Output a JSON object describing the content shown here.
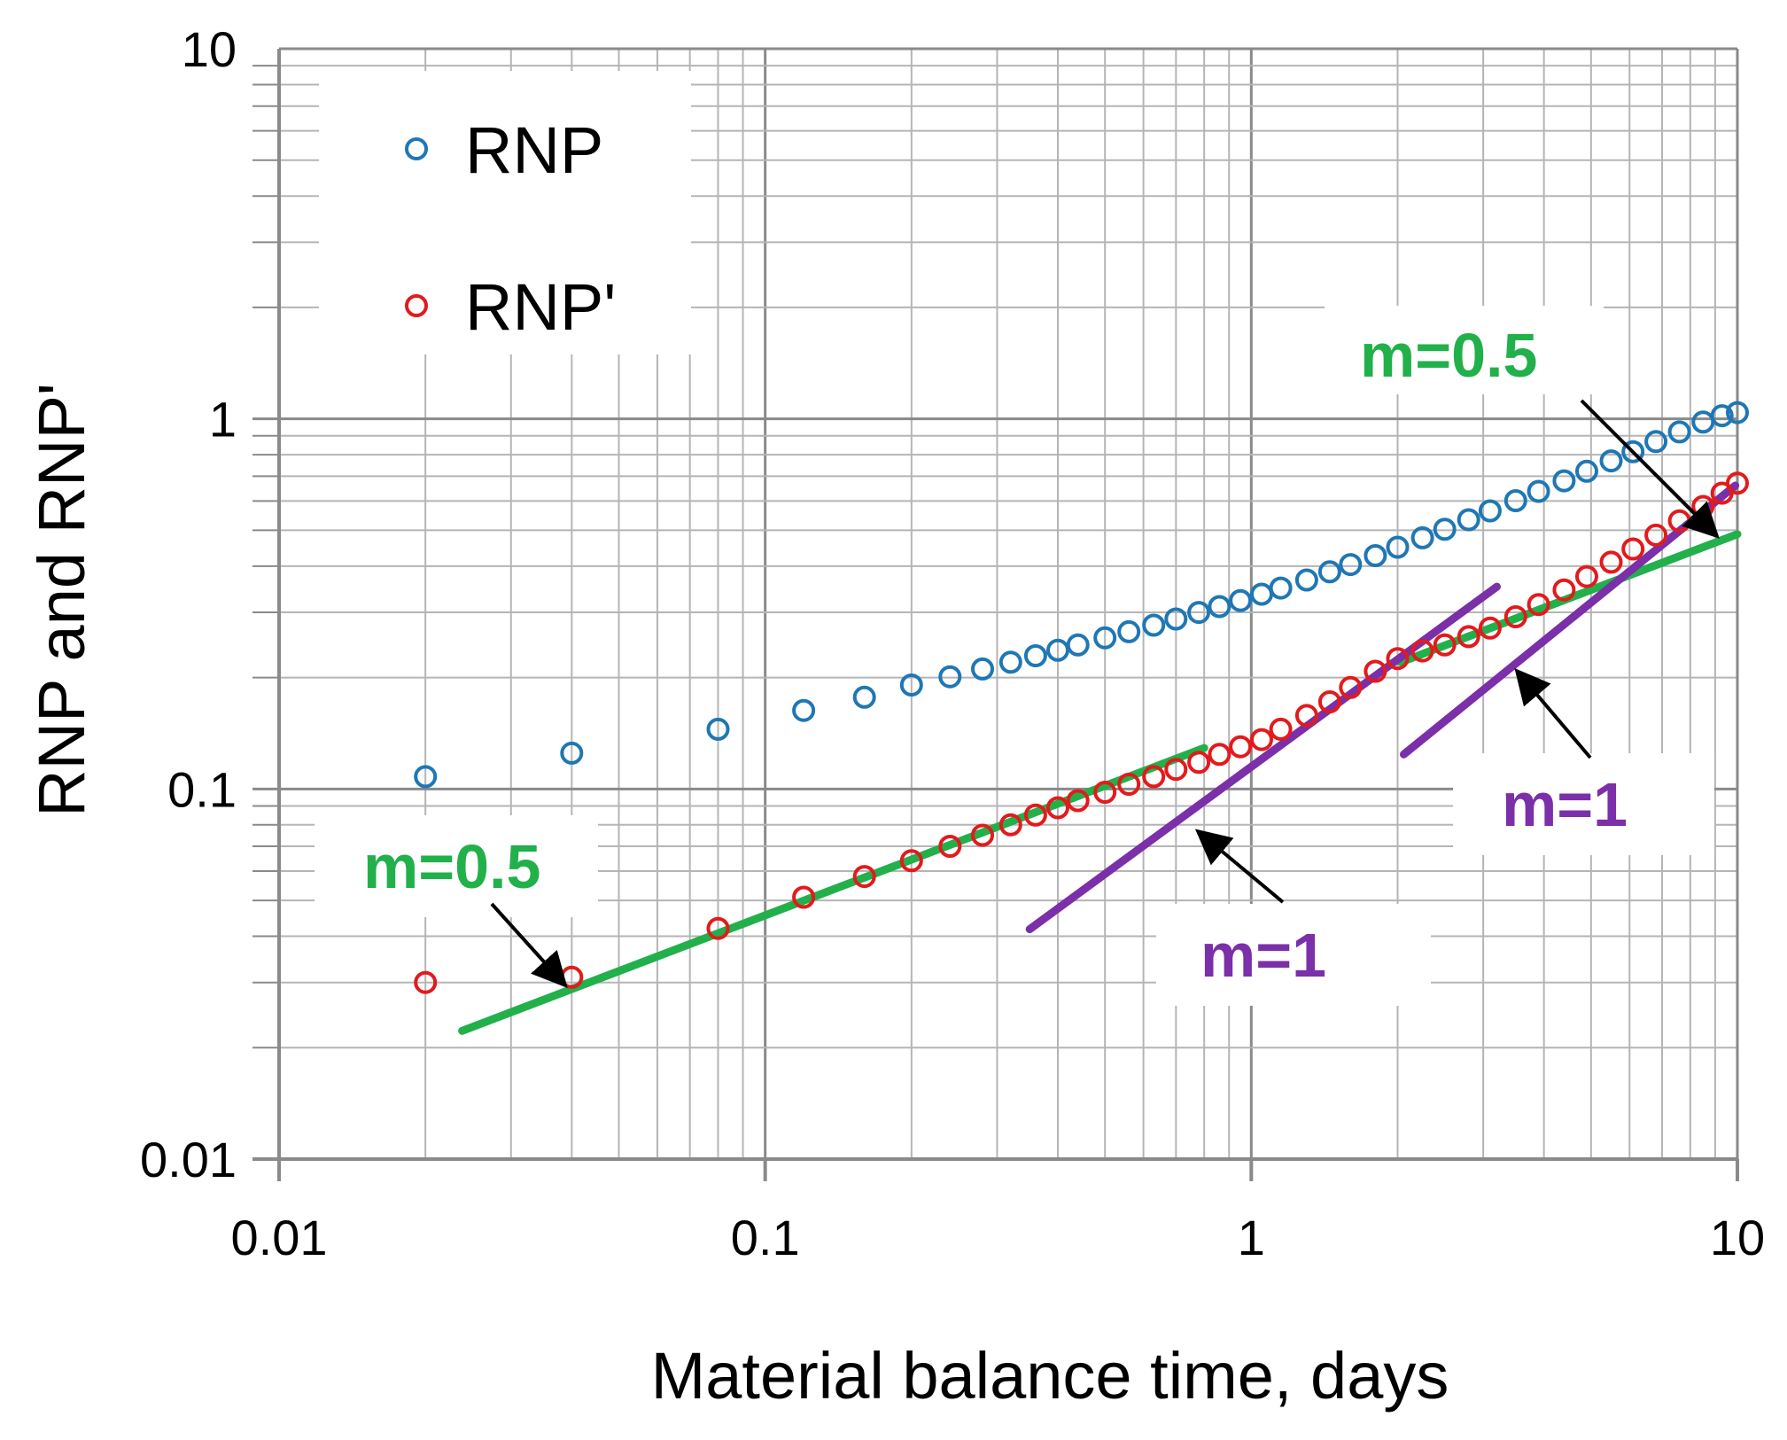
{
  "chart_data": {
    "type": "scatter",
    "xscale": "log",
    "yscale": "log",
    "xlabel": "Material  balance time,  days",
    "ylabel": "RNP  and  RNP'",
    "xlim": [
      0.01,
      10
    ],
    "ylim": [
      0.01,
      10
    ],
    "xticks": [
      {
        "value": 0.01,
        "label": "0.01"
      },
      {
        "value": 0.1,
        "label": "0.1"
      },
      {
        "value": 1,
        "label": "1"
      },
      {
        "value": 10,
        "label": "10"
      }
    ],
    "yticks": [
      {
        "value": 0.01,
        "label": "0.01"
      },
      {
        "value": 0.1,
        "label": "0.1"
      },
      {
        "value": 1,
        "label": "1"
      },
      {
        "value": 10,
        "label": "10"
      }
    ],
    "grid": true,
    "legend": {
      "position": "top-left",
      "entries": [
        {
          "label": "RNP",
          "color": "#1f77b4"
        },
        {
          "label": "RNP'",
          "color": "#e31a1c"
        }
      ]
    },
    "series": [
      {
        "name": "RNP",
        "color": "#1f77b4",
        "marker": "open-circle",
        "x": [
          0.02,
          0.04,
          0.08,
          0.12,
          0.16,
          0.2,
          0.24,
          0.28,
          0.32,
          0.36,
          0.4,
          0.44,
          0.5,
          0.56,
          0.63,
          0.7,
          0.78,
          0.86,
          0.95,
          1.05,
          1.15,
          1.3,
          1.45,
          1.6,
          1.8,
          2.0,
          2.25,
          2.5,
          2.8,
          3.1,
          3.5,
          3.9,
          4.4,
          4.9,
          5.5,
          6.1,
          6.8,
          7.6,
          8.5,
          9.3,
          10.0
        ],
        "y": [
          0.108,
          0.125,
          0.145,
          0.163,
          0.177,
          0.191,
          0.201,
          0.211,
          0.22,
          0.229,
          0.237,
          0.245,
          0.256,
          0.266,
          0.277,
          0.288,
          0.3,
          0.311,
          0.323,
          0.336,
          0.349,
          0.367,
          0.386,
          0.404,
          0.427,
          0.45,
          0.477,
          0.503,
          0.534,
          0.564,
          0.601,
          0.637,
          0.68,
          0.722,
          0.77,
          0.815,
          0.868,
          0.922,
          0.98,
          1.02,
          1.04
        ]
      },
      {
        "name": "RNP'",
        "color": "#e31a1c",
        "marker": "open-circle",
        "x": [
          0.02,
          0.04,
          0.08,
          0.12,
          0.16,
          0.2,
          0.24,
          0.28,
          0.32,
          0.36,
          0.4,
          0.44,
          0.5,
          0.56,
          0.63,
          0.7,
          0.78,
          0.86,
          0.95,
          1.05,
          1.15,
          1.3,
          1.45,
          1.6,
          1.8,
          2.0,
          2.25,
          2.5,
          2.8,
          3.1,
          3.5,
          3.9,
          4.4,
          4.9,
          5.5,
          6.1,
          6.8,
          7.6,
          8.5,
          9.3,
          10.0
        ],
        "y": [
          0.03,
          0.031,
          0.042,
          0.051,
          0.058,
          0.064,
          0.07,
          0.075,
          0.08,
          0.085,
          0.089,
          0.093,
          0.098,
          0.103,
          0.108,
          0.113,
          0.118,
          0.124,
          0.13,
          0.136,
          0.145,
          0.158,
          0.172,
          0.188,
          0.208,
          0.225,
          0.236,
          0.245,
          0.258,
          0.272,
          0.292,
          0.315,
          0.345,
          0.375,
          0.41,
          0.445,
          0.485,
          0.53,
          0.58,
          0.63,
          0.67
        ]
      },
      {
        "name": "m=0.5 fit (early)",
        "color": "#22b04b",
        "marker": "line",
        "x": [
          0.0238,
          0.8
        ],
        "y": [
          0.0222,
          0.129
        ]
      },
      {
        "name": "m=0.5 fit (late)",
        "color": "#22b04b",
        "marker": "line",
        "x": [
          2.03,
          10.0
        ],
        "y": [
          0.22,
          0.488
        ]
      },
      {
        "name": "m=1 fit (early)",
        "color": "#7b2fa8",
        "marker": "line",
        "x": [
          0.35,
          3.2
        ],
        "y": [
          0.0418,
          0.352
        ]
      },
      {
        "name": "m=1 fit (late)",
        "color": "#7b2fa8",
        "marker": "line",
        "x": [
          2.06,
          9.9
        ],
        "y": [
          0.124,
          0.66
        ]
      }
    ],
    "annotations": [
      {
        "label": "m=0.5",
        "color": "#22b04b"
      },
      {
        "label": "m=0.5",
        "color": "#22b04b"
      },
      {
        "label": "m=1",
        "color": "#7b2fa8"
      },
      {
        "label": "m=1",
        "color": "#7b2fa8"
      }
    ]
  }
}
